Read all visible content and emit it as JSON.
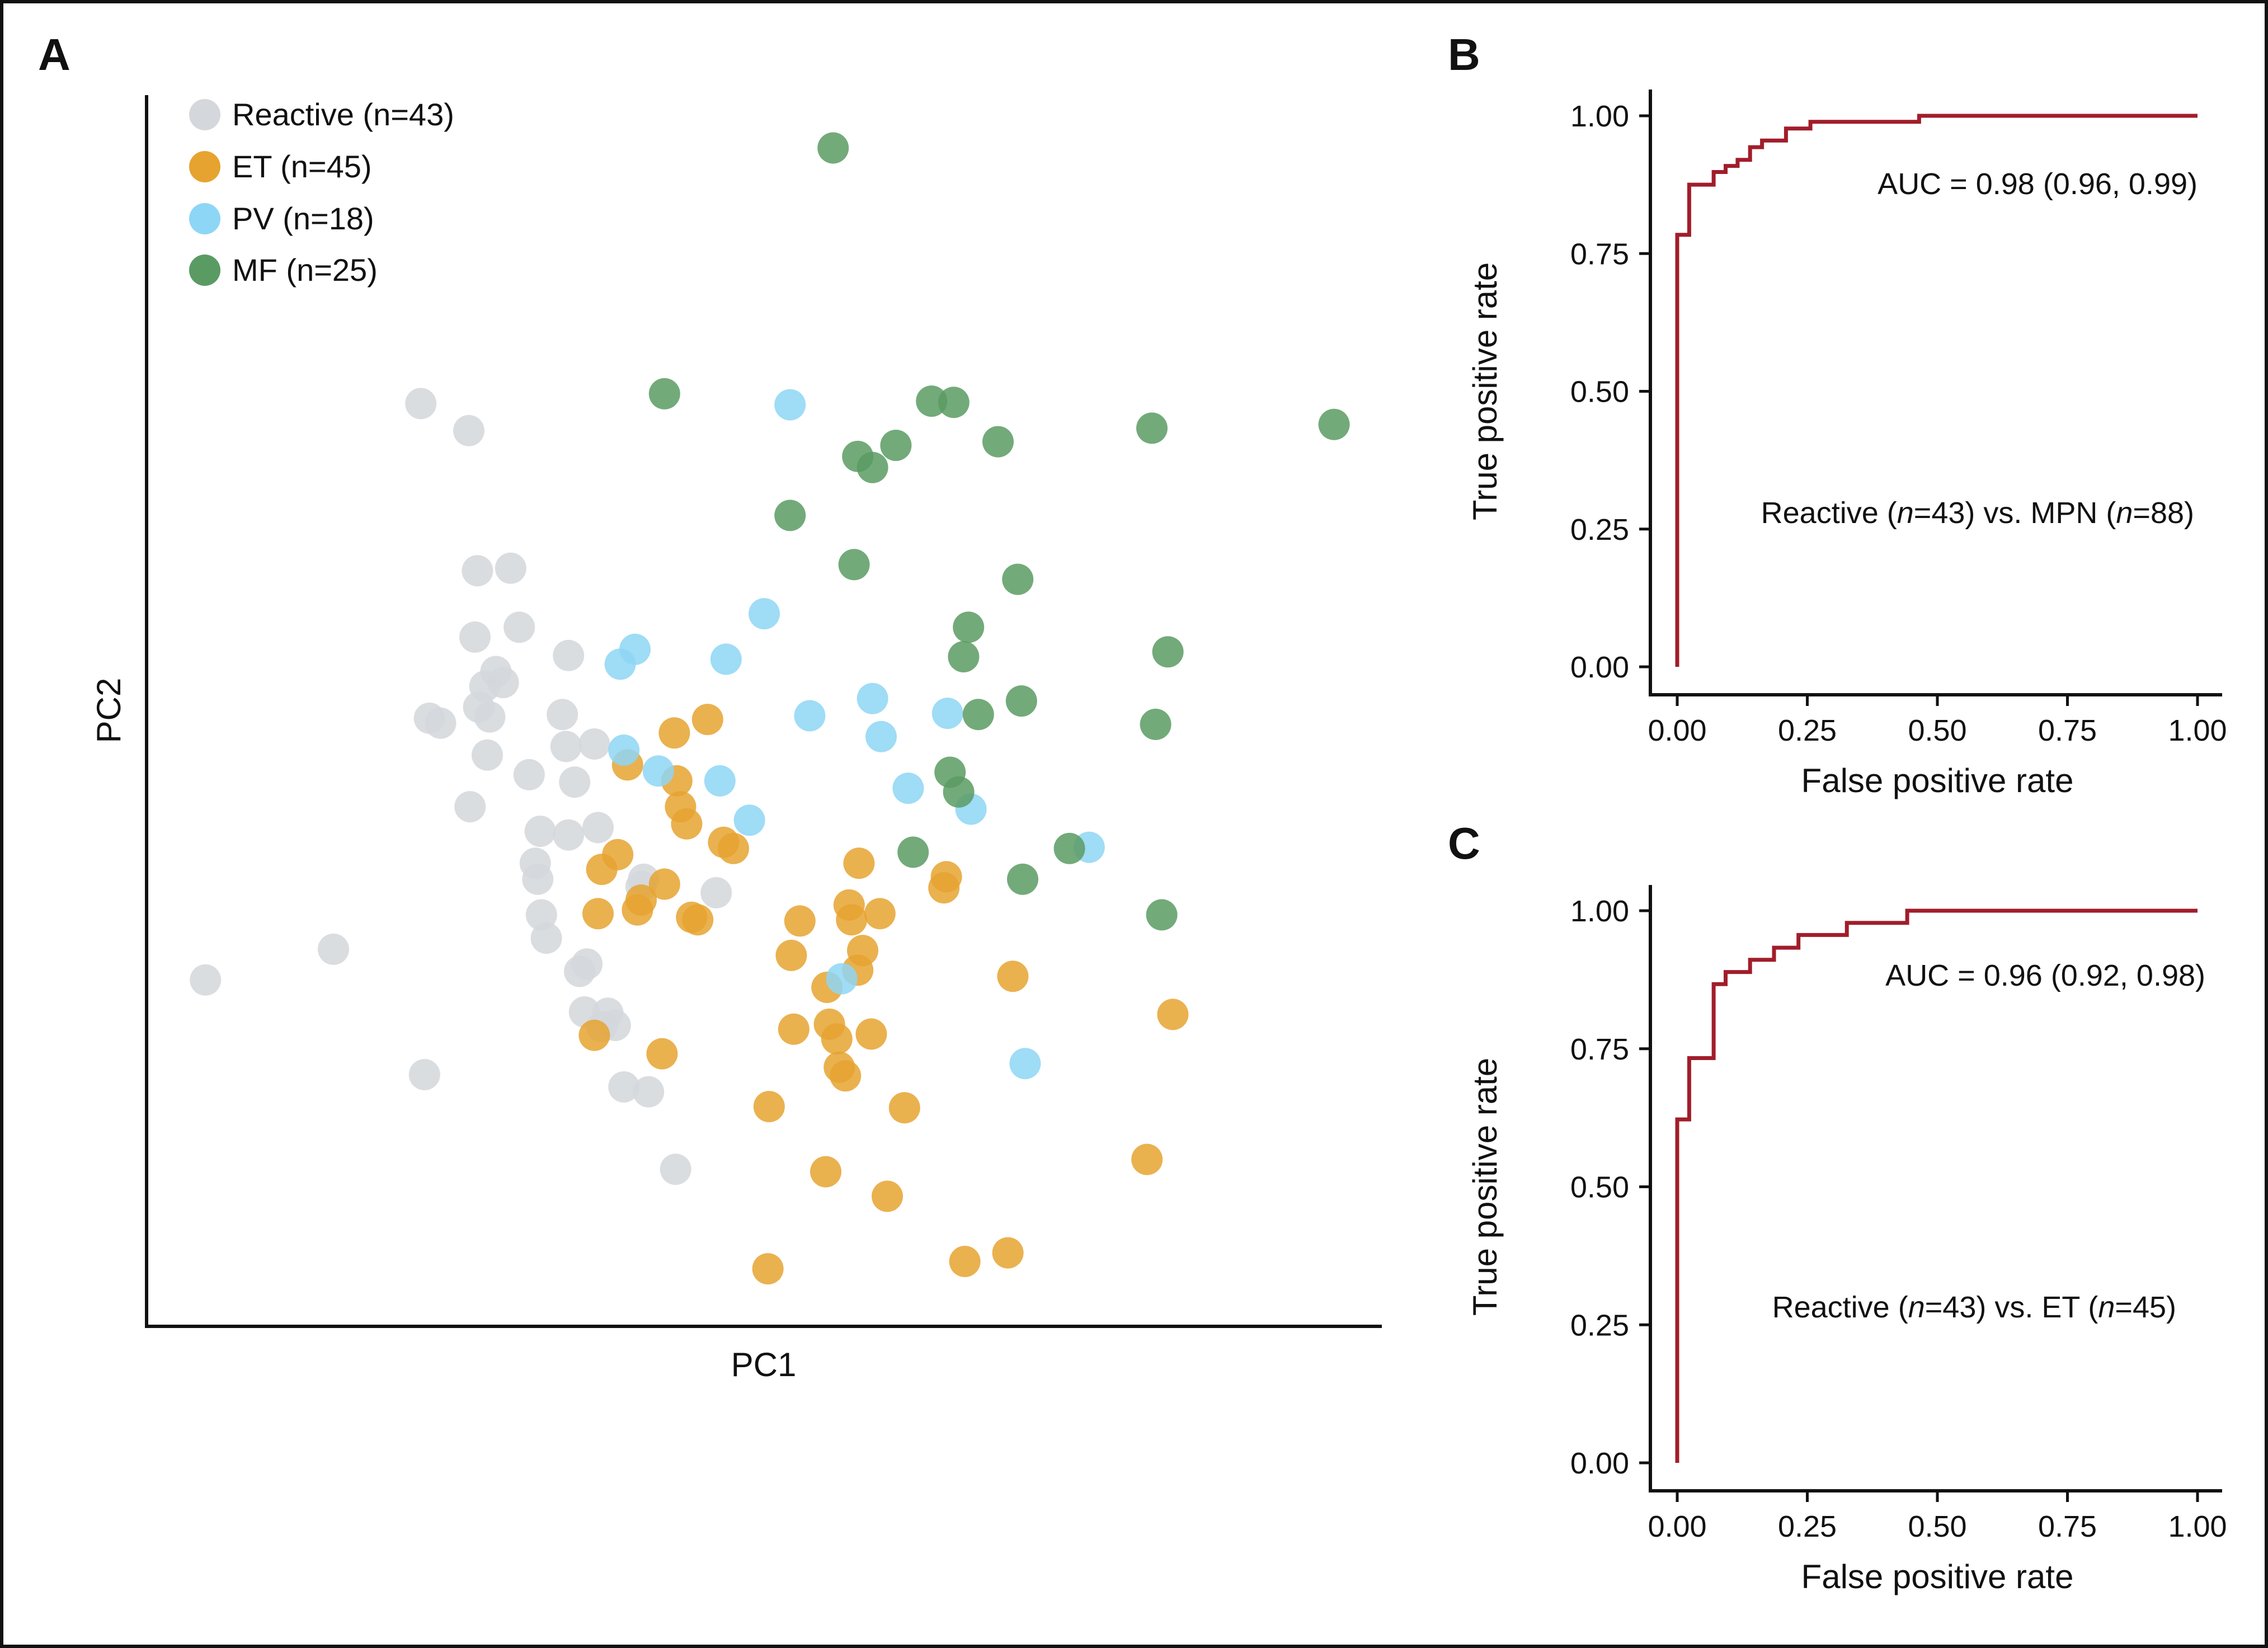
{
  "panels": {
    "A": {
      "letter": "A",
      "chart_data": {
        "type": "scatter",
        "xlabel": "PC1",
        "ylabel": "PC2",
        "xlim": [
          0,
          100
        ],
        "ylim": [
          0,
          100
        ],
        "legend_position": "top-left",
        "series": [
          {
            "name": "Reactive (n=43)",
            "color": "#d4d7db",
            "points": [
              [
                4.6,
                28.0
              ],
              [
                15.0,
                30.5
              ],
              [
                22.1,
                74.9
              ],
              [
                22.4,
                20.3
              ],
              [
                22.8,
                49.3
              ],
              [
                23.7,
                48.9
              ],
              [
                26.0,
                72.7
              ],
              [
                26.1,
                42.1
              ],
              [
                26.5,
                55.9
              ],
              [
                26.7,
                61.3
              ],
              [
                26.8,
                50.2
              ],
              [
                27.3,
                51.9
              ],
              [
                27.5,
                46.3
              ],
              [
                27.7,
                49.4
              ],
              [
                28.8,
                52.2
              ],
              [
                28.2,
                53.1
              ],
              [
                29.4,
                61.5
              ],
              [
                30.1,
                56.7
              ],
              [
                30.9,
                44.7
              ],
              [
                31.4,
                37.5
              ],
              [
                31.6,
                36.2
              ],
              [
                31.8,
                40.1
              ],
              [
                31.9,
                33.3
              ],
              [
                32.3,
                31.4
              ],
              [
                33.6,
                49.6
              ],
              [
                33.9,
                47.0
              ],
              [
                34.1,
                54.4
              ],
              [
                34.1,
                39.8
              ],
              [
                34.6,
                44.1
              ],
              [
                35.0,
                28.7
              ],
              [
                35.4,
                25.4
              ],
              [
                35.6,
                29.3
              ],
              [
                36.2,
                47.2
              ],
              [
                36.5,
                40.4
              ],
              [
                36.8,
                24.2
              ],
              [
                37.3,
                25.3
              ],
              [
                37.9,
                24.3
              ],
              [
                38.6,
                19.3
              ],
              [
                40.0,
                35.6
              ],
              [
                40.2,
                36.2
              ],
              [
                40.6,
                18.9
              ],
              [
                42.8,
                12.6
              ],
              [
                46.1,
                35.1
              ]
            ],
            "display": "light"
          },
          {
            "name": "ET (n=45)",
            "color": "#e6a330",
            "points": [
              [
                36.2,
                23.5
              ],
              [
                36.5,
                33.4
              ],
              [
                36.8,
                37.0
              ],
              [
                38.9,
                45.5
              ],
              [
                39.7,
                33.7
              ],
              [
                40.0,
                34.5
              ],
              [
                41.7,
                22.0
              ],
              [
                41.9,
                35.8
              ],
              [
                42.7,
                48.1
              ],
              [
                42.9,
                44.2
              ],
              [
                43.2,
                42.1
              ],
              [
                43.7,
                40.7
              ],
              [
                44.1,
                33.1
              ],
              [
                44.6,
                32.9
              ],
              [
                45.4,
                49.2
              ],
              [
                46.7,
                39.2
              ],
              [
                47.5,
                38.7
              ],
              [
                50.4,
                17.7
              ],
              [
                50.3,
                4.5
              ],
              [
                52.2,
                30.0
              ],
              [
                52.4,
                24.0
              ],
              [
                52.9,
                32.8
              ],
              [
                55.1,
                27.4
              ],
              [
                55.0,
                12.4
              ],
              [
                55.3,
                24.4
              ],
              [
                55.9,
                23.2
              ],
              [
                56.6,
                20.2
              ],
              [
                56.9,
                34.1
              ],
              [
                57.1,
                32.9
              ],
              [
                57.6,
                28.8
              ],
              [
                57.7,
                37.5
              ],
              [
                58.0,
                30.4
              ],
              [
                58.7,
                23.6
              ],
              [
                59.4,
                33.4
              ],
              [
                60.0,
                10.4
              ],
              [
                61.4,
                17.6
              ],
              [
                64.6,
                35.5
              ],
              [
                64.8,
                36.4
              ],
              [
                66.3,
                5.1
              ],
              [
                69.8,
                5.8
              ],
              [
                70.2,
                28.3
              ],
              [
                81.1,
                13.4
              ],
              [
                83.2,
                25.2
              ],
              [
                38.1,
                38.2
              ],
              [
                56.1,
                20.9
              ]
            ]
          },
          {
            "name": "PV (n=18)",
            "color": "#8ed6f5",
            "points": [
              [
                38.3,
                53.7
              ],
              [
                38.6,
                46.7
              ],
              [
                39.5,
                54.9
              ],
              [
                41.4,
                45.0
              ],
              [
                46.4,
                44.2
              ],
              [
                46.9,
                54.1
              ],
              [
                48.8,
                41.0
              ],
              [
                50.0,
                57.8
              ],
              [
                52.1,
                74.8
              ],
              [
                53.7,
                49.5
              ],
              [
                56.3,
                28.1
              ],
              [
                58.8,
                50.9
              ],
              [
                59.5,
                47.8
              ],
              [
                61.7,
                43.6
              ],
              [
                64.9,
                49.7
              ],
              [
                66.8,
                41.9
              ],
              [
                71.2,
                21.2
              ],
              [
                76.4,
                38.8
              ]
            ]
          },
          {
            "name": "MF (n=25)",
            "color": "#5a9b63",
            "points": [
              [
                41.9,
                75.7
              ],
              [
                52.1,
                65.8
              ],
              [
                55.6,
                95.7
              ],
              [
                57.3,
                61.8
              ],
              [
                57.6,
                70.6
              ],
              [
                58.8,
                69.7
              ],
              [
                60.7,
                71.5
              ],
              [
                62.1,
                38.4
              ],
              [
                63.6,
                75.1
              ],
              [
                65.1,
                44.9
              ],
              [
                65.8,
                43.3
              ],
              [
                65.4,
                75.0
              ],
              [
                66.2,
                54.3
              ],
              [
                66.6,
                56.7
              ],
              [
                67.4,
                49.6
              ],
              [
                69.0,
                71.8
              ],
              [
                70.6,
                60.6
              ],
              [
                70.9,
                50.7
              ],
              [
                71.0,
                36.2
              ],
              [
                74.8,
                38.7
              ],
              [
                81.5,
                72.9
              ],
              [
                81.8,
                48.8
              ],
              [
                82.3,
                33.3
              ],
              [
                82.8,
                54.7
              ],
              [
                96.3,
                73.2
              ]
            ]
          }
        ]
      }
    },
    "B": {
      "letter": "B",
      "annotation_auc": "AUC = 0.98 (0.96, 0.99)",
      "annotation_cmp_1": "Reactive (",
      "annotation_cmp_n": "n",
      "annotation_cmp_2": "=43) vs. MPN (",
      "annotation_cmp_n2": "n",
      "annotation_cmp_3": "=88)",
      "chart_data": {
        "type": "line",
        "xlabel": "False positive rate",
        "ylabel": "True positive rate",
        "xlim": [
          0,
          1
        ],
        "ylim": [
          0,
          1
        ],
        "xticks": [
          "0.00",
          "0.25",
          "0.50",
          "0.75",
          "1.00"
        ],
        "yticks": [
          "0.00",
          "0.25",
          "0.50",
          "0.75",
          "1.00"
        ],
        "auc": 0.98,
        "auc_ci": [
          0.96,
          0.99
        ],
        "series": [
          {
            "color": "#a11d2a",
            "x": [
              0,
              0,
              0.023,
              0.023,
              0.07,
              0.07,
              0.093,
              0.093,
              0.116,
              0.116,
              0.14,
              0.14,
              0.163,
              0.163,
              0.209,
              0.209,
              0.256,
              0.256,
              0.465,
              0.465,
              1.0
            ],
            "y": [
              0,
              0.784,
              0.784,
              0.875,
              0.875,
              0.898,
              0.898,
              0.909,
              0.909,
              0.92,
              0.92,
              0.943,
              0.943,
              0.955,
              0.955,
              0.977,
              0.977,
              0.989,
              0.989,
              1.0,
              1.0
            ]
          }
        ]
      }
    },
    "C": {
      "letter": "C",
      "annotation_auc": "AUC = 0.96 (0.92, 0.98)",
      "annotation_cmp_1": "Reactive (",
      "annotation_cmp_n": "n",
      "annotation_cmp_2": "=43) vs. ET (",
      "annotation_cmp_n2": "n",
      "annotation_cmp_3": "=45)",
      "chart_data": {
        "type": "line",
        "xlabel": "False positive rate",
        "ylabel": "True positive rate",
        "xlim": [
          0,
          1
        ],
        "ylim": [
          0,
          1
        ],
        "xticks": [
          "0.00",
          "0.25",
          "0.50",
          "0.75",
          "1.00"
        ],
        "yticks": [
          "0.00",
          "0.25",
          "0.50",
          "0.75",
          "1.00"
        ],
        "auc": 0.96,
        "auc_ci": [
          0.92,
          0.98
        ],
        "series": [
          {
            "color": "#a11d2a",
            "x": [
              0,
              0,
              0.023,
              0.023,
              0.07,
              0.07,
              0.093,
              0.093,
              0.14,
              0.14,
              0.186,
              0.186,
              0.233,
              0.233,
              0.326,
              0.326,
              0.442,
              0.442,
              1.0
            ],
            "y": [
              0,
              0.622,
              0.622,
              0.733,
              0.733,
              0.867,
              0.867,
              0.889,
              0.889,
              0.911,
              0.911,
              0.933,
              0.933,
              0.956,
              0.956,
              0.978,
              0.978,
              1.0,
              1.0
            ]
          }
        ]
      }
    }
  }
}
